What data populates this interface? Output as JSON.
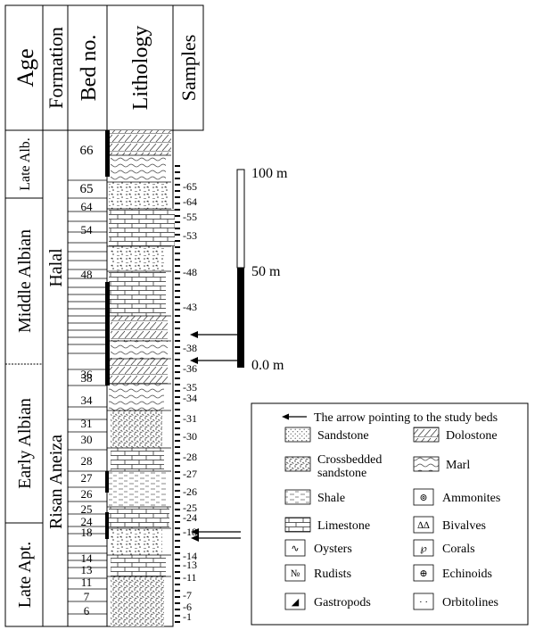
{
  "header": {
    "age": "Age",
    "formation": "Formation",
    "bed_no": "Bed no.",
    "lithology": "Lithology",
    "samples": "Samples"
  },
  "ages": [
    "Late Alb.",
    "Middle Albian",
    "Early  Albian",
    "Late Apt."
  ],
  "formations": [
    "Halal",
    "Risan Aneiza"
  ],
  "bed_numbers": [
    "66",
    "65",
    "64",
    "54",
    "48",
    "38",
    "36",
    "34",
    "31",
    "30",
    "28",
    "27",
    "26",
    "25",
    "24",
    "18",
    "14",
    "13",
    "11",
    "7",
    "6"
  ],
  "sample_numbers": [
    "65",
    "64",
    "55",
    "53",
    "48",
    "43",
    "38",
    "36",
    "35",
    "34",
    "31",
    "30",
    "28",
    "27",
    "26",
    "25",
    "24",
    "18",
    "14",
    "13",
    "11",
    "7",
    "6",
    "1"
  ],
  "scale": {
    "top": "100 m",
    "mid": "50 m",
    "bottom": "0.0 m"
  },
  "legend": {
    "title": "The arrow pointing to the study beds",
    "items": [
      {
        "label": "Sandstone",
        "icon": "sandstone-pattern"
      },
      {
        "label": "Dolostone",
        "icon": "dolostone-pattern"
      },
      {
        "label": "Crossbedded sandstone",
        "icon": "crossbedded-sandstone-pattern"
      },
      {
        "label": "Marl",
        "icon": "marl-pattern"
      },
      {
        "label": "Shale",
        "icon": "shale-pattern"
      },
      {
        "label": "Ammonites",
        "icon": "ammonite-icon"
      },
      {
        "label": "Limestone",
        "icon": "limestone-pattern"
      },
      {
        "label": "Bivalves",
        "icon": "bivalve-icon"
      },
      {
        "label": "Oysters",
        "icon": "oyster-icon"
      },
      {
        "label": "Corals",
        "icon": "coral-icon"
      },
      {
        "label": "Rudists",
        "icon": "rudist-icon"
      },
      {
        "label": "Echinoids",
        "icon": "echinoid-icon"
      },
      {
        "label": "Gastropods",
        "icon": "gastropod-icon"
      },
      {
        "label": "Orbitolines",
        "icon": "orbitoline-icon"
      }
    ]
  }
}
